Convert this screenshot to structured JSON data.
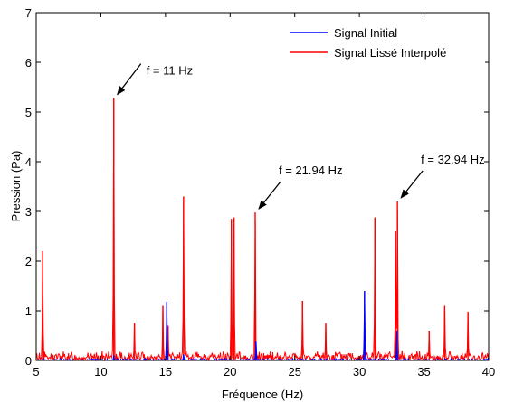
{
  "chart_data": {
    "type": "line",
    "xlabel": "Fréquence (Hz)",
    "ylabel": "Pression (Pa)",
    "xlim": [
      5,
      40
    ],
    "ylim": [
      0,
      7
    ],
    "xticks": [
      5,
      10,
      15,
      20,
      25,
      30,
      35,
      40
    ],
    "yticks": [
      0,
      1,
      2,
      3,
      4,
      5,
      6,
      7
    ],
    "xtick_labels": [
      "5",
      "10",
      "15",
      "20",
      "25",
      "30",
      "35",
      "40"
    ],
    "ytick_labels": [
      "0",
      "1",
      "2",
      "3",
      "4",
      "5",
      "6",
      "7"
    ],
    "grid": false,
    "legend_position": "top-right",
    "series": [
      {
        "name": "Signal Initial",
        "color": "#0000ff",
        "noise_level": 0.03,
        "peaks": [
          {
            "x": 15.1,
            "y": 1.18
          },
          {
            "x": 22.0,
            "y": 0.38
          },
          {
            "x": 30.4,
            "y": 1.4
          },
          {
            "x": 32.9,
            "y": 0.6
          },
          {
            "x": 11.0,
            "y": 0.1
          },
          {
            "x": 16.4,
            "y": 0.12
          }
        ]
      },
      {
        "name": "Signal Lissé Interpolé",
        "color": "#ff0000",
        "noise_level": 0.15,
        "peaks": [
          {
            "x": 5.5,
            "y": 2.2
          },
          {
            "x": 11.0,
            "y": 5.28
          },
          {
            "x": 12.6,
            "y": 0.75
          },
          {
            "x": 14.8,
            "y": 1.1
          },
          {
            "x": 15.2,
            "y": 0.7
          },
          {
            "x": 16.4,
            "y": 3.3
          },
          {
            "x": 20.1,
            "y": 2.85
          },
          {
            "x": 20.3,
            "y": 2.88
          },
          {
            "x": 21.94,
            "y": 2.98
          },
          {
            "x": 25.6,
            "y": 1.2
          },
          {
            "x": 27.4,
            "y": 0.75
          },
          {
            "x": 30.4,
            "y": 0.95
          },
          {
            "x": 31.2,
            "y": 2.88
          },
          {
            "x": 32.94,
            "y": 3.2
          },
          {
            "x": 32.8,
            "y": 2.6
          },
          {
            "x": 35.4,
            "y": 0.6
          },
          {
            "x": 36.6,
            "y": 1.1
          },
          {
            "x": 38.4,
            "y": 0.98
          }
        ]
      }
    ],
    "annotations": [
      {
        "text": "f = 11 Hz",
        "x": 11.0,
        "y": 5.28
      },
      {
        "text": "f = 21.94 Hz",
        "x": 21.94,
        "y": 2.98
      },
      {
        "text": "f = 32.94 Hz",
        "x": 32.94,
        "y": 3.2
      }
    ]
  }
}
